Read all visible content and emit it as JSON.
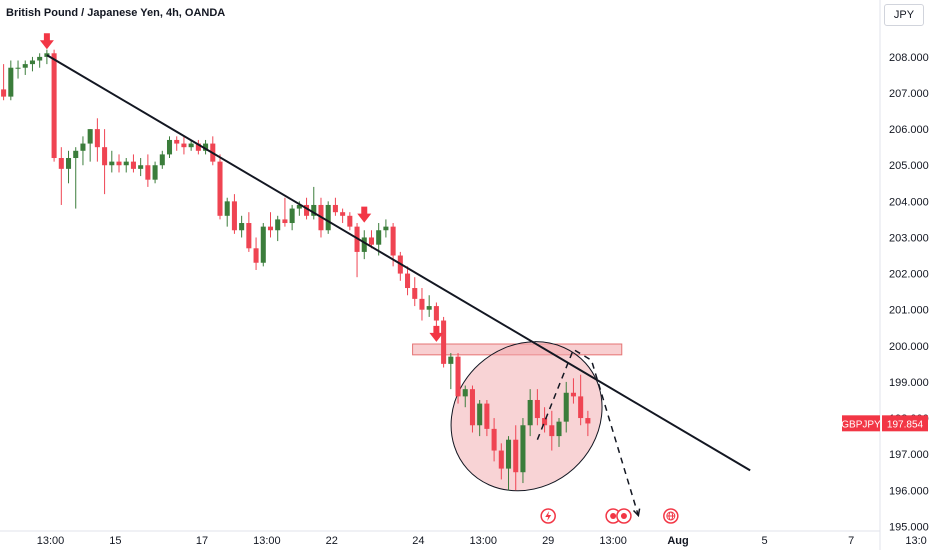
{
  "header": {
    "title": "British Pound / Japanese Yen, 4h, OANDA",
    "currency_button": "JPY"
  },
  "price_tag": {
    "symbol": "GBPJPY",
    "value": "197.854"
  },
  "colors": {
    "up": "#26a69a",
    "down": "#ef5350",
    "up_candle": "#3b7d3b",
    "down_candle": "#ef4452",
    "trendline": "#131722",
    "zone": "#f2a8ac",
    "tag": "#f23645"
  },
  "icons": [
    "lightning-event-icon",
    "dividends-event-icon",
    "earnings-event-icon",
    "globe-event-icon"
  ],
  "chart_data": {
    "type": "candlestick",
    "y_axis": {
      "range": [
        194.9,
        208.8
      ],
      "ticks": [
        "195.000",
        "196.000",
        "197.000",
        "198.000",
        "199.000",
        "200.000",
        "201.000",
        "202.000",
        "203.000",
        "204.000",
        "205.000",
        "206.000",
        "207.000",
        "208.000"
      ],
      "tick_values": [
        195,
        196,
        197,
        198,
        199,
        200,
        201,
        202,
        203,
        204,
        205,
        206,
        207,
        208
      ]
    },
    "x_axis": {
      "range": [
        0,
        122
      ],
      "ticks": [
        {
          "label": "13:00",
          "x": 7
        },
        {
          "label": "15",
          "x": 16
        },
        {
          "label": "17",
          "x": 28
        },
        {
          "label": "13:00",
          "x": 37
        },
        {
          "label": "22",
          "x": 46
        },
        {
          "label": "24",
          "x": 58
        },
        {
          "label": "13:00",
          "x": 67
        },
        {
          "label": "29",
          "x": 76
        },
        {
          "label": "13:00",
          "x": 85
        },
        {
          "label": "Aug",
          "x": 94,
          "bold": true
        },
        {
          "label": "5",
          "x": 106
        },
        {
          "label": "7",
          "x": 118
        },
        {
          "label": "13:0",
          "x": 127
        }
      ]
    },
    "candles": [
      [
        207.1,
        207.8,
        206.8,
        206.9
      ],
      [
        206.9,
        207.9,
        206.8,
        207.7
      ],
      [
        207.7,
        207.9,
        207.4,
        207.7
      ],
      [
        207.7,
        207.9,
        207.5,
        207.8
      ],
      [
        207.8,
        208.0,
        207.6,
        207.9
      ],
      [
        207.9,
        208.1,
        207.7,
        208.0
      ],
      [
        208.0,
        208.2,
        207.8,
        208.1
      ],
      [
        208.1,
        208.2,
        205.1,
        205.2
      ],
      [
        205.2,
        205.5,
        203.9,
        204.9
      ],
      [
        204.9,
        205.4,
        204.5,
        205.2
      ],
      [
        205.2,
        205.5,
        203.8,
        205.4
      ],
      [
        205.4,
        205.8,
        205.0,
        205.6
      ],
      [
        205.6,
        206.0,
        205.1,
        206.0
      ],
      [
        206.0,
        206.3,
        205.1,
        205.5
      ],
      [
        205.5,
        206.0,
        204.2,
        205.0
      ],
      [
        205.0,
        205.4,
        204.8,
        205.1
      ],
      [
        205.1,
        205.3,
        204.8,
        205.0
      ],
      [
        205.0,
        205.2,
        204.8,
        205.1
      ],
      [
        205.1,
        205.3,
        204.8,
        204.9
      ],
      [
        204.9,
        205.2,
        204.7,
        205.0
      ],
      [
        205.0,
        205.3,
        204.4,
        204.6
      ],
      [
        204.6,
        205.1,
        204.5,
        205.0
      ],
      [
        205.0,
        205.4,
        204.9,
        205.3
      ],
      [
        205.3,
        205.8,
        205.2,
        205.7
      ],
      [
        205.7,
        205.8,
        205.4,
        205.6
      ],
      [
        205.6,
        205.8,
        205.3,
        205.5
      ],
      [
        205.5,
        205.7,
        205.4,
        205.6
      ],
      [
        205.6,
        205.7,
        205.3,
        205.4
      ],
      [
        205.4,
        205.7,
        205.3,
        205.6
      ],
      [
        205.6,
        205.8,
        205.0,
        205.1
      ],
      [
        205.1,
        205.3,
        203.5,
        203.6
      ],
      [
        203.6,
        204.1,
        203.3,
        204.0
      ],
      [
        204.0,
        204.2,
        203.1,
        203.2
      ],
      [
        203.2,
        203.6,
        203.0,
        203.4
      ],
      [
        203.4,
        203.7,
        202.6,
        202.7
      ],
      [
        202.7,
        203.0,
        202.1,
        202.3
      ],
      [
        202.3,
        203.4,
        202.2,
        203.3
      ],
      [
        203.3,
        203.7,
        203.0,
        203.2
      ],
      [
        203.2,
        203.6,
        202.9,
        203.5
      ],
      [
        203.5,
        204.1,
        203.3,
        203.4
      ],
      [
        203.4,
        203.9,
        203.2,
        203.8
      ],
      [
        203.8,
        204.0,
        203.6,
        203.9
      ],
      [
        203.9,
        204.1,
        203.5,
        203.6
      ],
      [
        203.6,
        204.4,
        203.5,
        203.9
      ],
      [
        203.9,
        204.1,
        203.0,
        203.2
      ],
      [
        203.2,
        204.0,
        203.1,
        203.9
      ],
      [
        203.9,
        204.1,
        203.6,
        203.7
      ],
      [
        203.7,
        203.8,
        203.4,
        203.6
      ],
      [
        203.6,
        203.7,
        203.2,
        203.3
      ],
      [
        203.3,
        203.4,
        201.9,
        202.6
      ],
      [
        202.6,
        203.2,
        202.4,
        203.0
      ],
      [
        203.0,
        203.2,
        202.7,
        202.8
      ],
      [
        202.8,
        203.4,
        202.5,
        203.2
      ],
      [
        203.2,
        203.5,
        203.0,
        203.3
      ],
      [
        203.3,
        203.4,
        202.2,
        202.5
      ],
      [
        202.5,
        202.6,
        201.8,
        202.0
      ],
      [
        202.0,
        202.2,
        201.4,
        201.6
      ],
      [
        201.6,
        201.9,
        201.1,
        201.3
      ],
      [
        201.3,
        201.6,
        200.7,
        201.0
      ],
      [
        201.0,
        201.4,
        200.8,
        201.1
      ],
      [
        201.1,
        201.2,
        200.4,
        200.7
      ],
      [
        200.7,
        200.8,
        199.4,
        199.5
      ],
      [
        199.5,
        199.8,
        198.8,
        199.7
      ],
      [
        199.7,
        199.8,
        198.4,
        198.6
      ],
      [
        198.6,
        198.9,
        198.3,
        198.8
      ],
      [
        198.8,
        198.9,
        197.6,
        197.8
      ],
      [
        197.8,
        198.5,
        197.5,
        198.4
      ],
      [
        198.4,
        198.5,
        197.5,
        197.7
      ],
      [
        197.7,
        198.0,
        196.8,
        197.1
      ],
      [
        197.1,
        197.3,
        196.3,
        196.6
      ],
      [
        196.6,
        197.5,
        196.0,
        197.4
      ],
      [
        197.4,
        197.8,
        196.0,
        196.5
      ],
      [
        196.5,
        198.0,
        196.2,
        197.8
      ],
      [
        197.8,
        198.8,
        197.5,
        198.5
      ],
      [
        198.5,
        198.8,
        197.8,
        198.0
      ],
      [
        198.0,
        198.3,
        197.6,
        197.8
      ],
      [
        197.8,
        198.2,
        197.1,
        197.5
      ],
      [
        197.5,
        198.0,
        197.2,
        197.9
      ],
      [
        197.9,
        199.0,
        197.6,
        198.7
      ],
      [
        198.7,
        199.1,
        198.4,
        198.6
      ],
      [
        198.6,
        199.2,
        197.8,
        198.0
      ],
      [
        198.0,
        198.2,
        197.5,
        197.85
      ]
    ],
    "trendline": {
      "from": [
        6.5,
        208.05
      ],
      "to": [
        104.0,
        196.55
      ]
    },
    "resistance_zone": {
      "x_range": [
        57.2,
        86.2
      ],
      "y_range": [
        199.75,
        200.05
      ]
    },
    "markers": [
      {
        "type": "arrow-down",
        "x": 6.5,
        "y": 208.1
      },
      {
        "type": "arrow-down",
        "x": 50.5,
        "y": 203.3
      },
      {
        "type": "arrow-down",
        "x": 60.5,
        "y": 200.0
      }
    ],
    "ellipse": {
      "center": [
        73.0,
        198.05
      ],
      "rx_units": 11.0,
      "ry_value": 1.95
    },
    "projection_path": [
      [
        74.5,
        197.4
      ],
      [
        79.5,
        199.9
      ],
      [
        82.0,
        199.6
      ],
      [
        88.5,
        195.3
      ]
    ],
    "event_markers": [
      {
        "icon": "lightning-event-icon",
        "x": 76
      },
      {
        "icon": "dividends-event-icon",
        "x": 85
      },
      {
        "icon": "earnings-event-icon",
        "x": 86.5
      },
      {
        "icon": "globe-event-icon",
        "x": 93
      }
    ]
  }
}
